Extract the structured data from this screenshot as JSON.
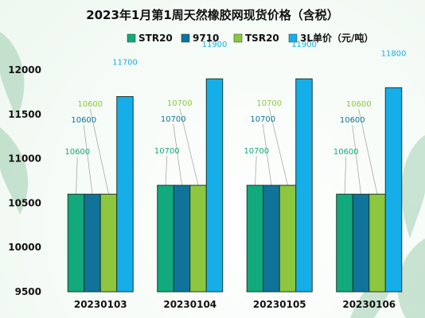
{
  "chart_data": {
    "type": "bar",
    "title": "2023年1月第1周天然橡胶网现货价格（含税）",
    "categories": [
      "20230103",
      "20230104",
      "20230105",
      "20230106"
    ],
    "series": [
      {
        "name": "STR20",
        "color": "#12a97c",
        "values": [
          10600,
          10700,
          10700,
          10600
        ],
        "label_color": "#12a97c"
      },
      {
        "name": "9710",
        "color": "#0f739a",
        "values": [
          10600,
          10700,
          10700,
          10600
        ],
        "label_color": "#0f739a"
      },
      {
        "name": "TSR20",
        "color": "#8dc63f",
        "values": [
          10600,
          10700,
          10700,
          10600
        ],
        "label_color": "#8dc63f"
      },
      {
        "name": "3L单价（元/吨）",
        "color": "#15aee8",
        "values": [
          11700,
          11900,
          11900,
          11800
        ],
        "label_color": "#15aee8"
      }
    ],
    "ylim": [
      9500,
      12000
    ],
    "yticks": [
      9500,
      10000,
      10500,
      11000,
      11500,
      12000
    ],
    "xlabel": "",
    "ylabel": "",
    "grid": false,
    "legend_position": "top"
  },
  "colors": {
    "title": "#111111",
    "axis_text": "#111111",
    "leader_line": "#aaaaaa",
    "bar_border": "#1e3a2a"
  }
}
